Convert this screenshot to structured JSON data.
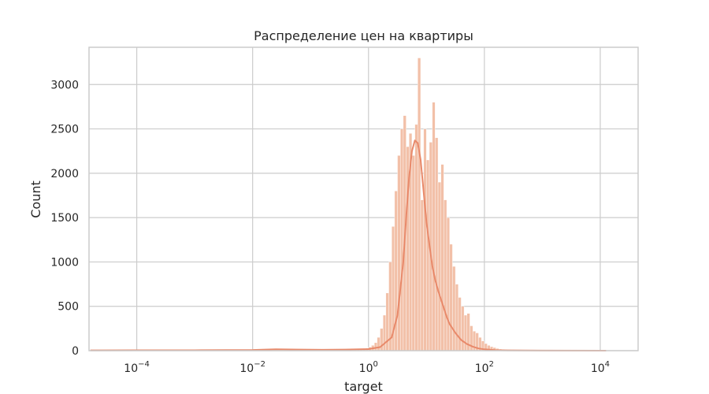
{
  "chart_data": {
    "type": "histogram",
    "title": "Распределение цен на квартиры",
    "xlabel": "target",
    "ylabel": "Count",
    "x_scale": "log",
    "xlim": [
      1.5e-05,
      45000
    ],
    "ylim": [
      0,
      3420
    ],
    "x_ticks": [
      {
        "value": 0.0001,
        "base": "10",
        "exp": "−4"
      },
      {
        "value": 0.01,
        "base": "10",
        "exp": "−2"
      },
      {
        "value": 1,
        "base": "10",
        "exp": "0"
      },
      {
        "value": 100,
        "base": "10",
        "exp": "2"
      },
      {
        "value": 10000,
        "base": "10",
        "exp": "4"
      }
    ],
    "y_ticks": [
      0,
      500,
      1000,
      1500,
      2000,
      2500,
      3000
    ],
    "y_tick_labels": [
      "0",
      "500",
      "1000",
      "1500",
      "2000",
      "2500",
      "3000"
    ],
    "grid": true,
    "bar_color": "#f2c0a8",
    "kde_color": "#e8896a",
    "bins": {
      "log10_edges": [
        -4.8,
        -0.75,
        -0.7,
        -0.65,
        -0.6,
        -0.55,
        -0.5,
        -0.45,
        -0.4,
        -0.35,
        -0.3,
        -0.25,
        -0.2,
        -0.15,
        -0.1,
        -0.05,
        0.0,
        0.05,
        0.1,
        0.15,
        0.2,
        0.25,
        0.3,
        0.35,
        0.4,
        0.45,
        0.5,
        0.55,
        0.6,
        0.65,
        0.7,
        0.75,
        0.8,
        0.85,
        0.9,
        0.95,
        1.0,
        1.05,
        1.1,
        1.15,
        1.2,
        1.25,
        1.3,
        1.35,
        1.4,
        1.45,
        1.5,
        1.55,
        1.6,
        1.65,
        1.7,
        1.75,
        1.8,
        1.85,
        1.9,
        1.95,
        2.0,
        2.05,
        2.1,
        2.15,
        2.2,
        2.25,
        2.3,
        2.35,
        2.4,
        2.5,
        2.6,
        2.8,
        3.2,
        4.1
      ],
      "counts": [
        8,
        6,
        8,
        6,
        10,
        15,
        12,
        10,
        8,
        10,
        8,
        10,
        12,
        15,
        20,
        30,
        40,
        60,
        90,
        150,
        250,
        400,
        650,
        1000,
        1400,
        1800,
        2200,
        2500,
        2650,
        2300,
        2450,
        2200,
        2550,
        3300,
        1700,
        2500,
        2150,
        2350,
        2800,
        2400,
        1900,
        2100,
        1700,
        1500,
        1200,
        950,
        750,
        600,
        500,
        400,
        420,
        280,
        220,
        200,
        150,
        110,
        80,
        60,
        45,
        35,
        25,
        18,
        14,
        10,
        8,
        5,
        3,
        2,
        1
      ]
    },
    "kde": {
      "log10_x": [
        -4.8,
        -4.0,
        -3.0,
        -2.0,
        -1.6,
        -1.2,
        -0.8,
        -0.4,
        0.0,
        0.2,
        0.4,
        0.5,
        0.6,
        0.65,
        0.7,
        0.75,
        0.8,
        0.85,
        0.9,
        0.95,
        1.0,
        1.05,
        1.1,
        1.15,
        1.2,
        1.25,
        1.3,
        1.35,
        1.4,
        1.45,
        1.5,
        1.55,
        1.6,
        1.7,
        1.8,
        1.9,
        2.0,
        2.2,
        2.4,
        3.0,
        4.1
      ],
      "y": [
        3,
        4,
        5,
        8,
        15,
        12,
        10,
        12,
        18,
        40,
        150,
        400,
        1000,
        1500,
        1950,
        2250,
        2370,
        2340,
        2150,
        1800,
        1450,
        1200,
        960,
        800,
        680,
        580,
        480,
        380,
        300,
        250,
        200,
        160,
        120,
        75,
        45,
        25,
        15,
        6,
        3,
        1,
        0
      ]
    }
  }
}
